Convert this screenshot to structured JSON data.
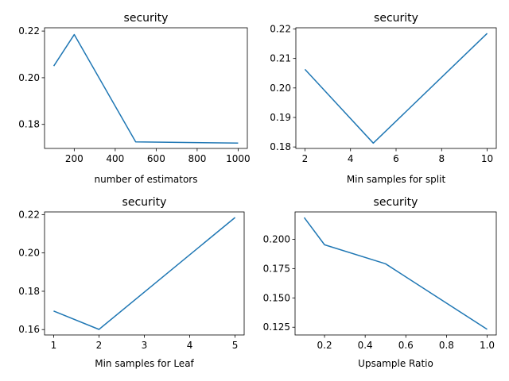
{
  "chart_data": [
    {
      "type": "line",
      "title": "security",
      "xlabel": "number of estimators",
      "ylabel": "",
      "grid": false,
      "x": [
        100,
        200,
        500,
        1000
      ],
      "series": [
        {
          "values": [
            0.205,
            0.2185,
            0.1725,
            0.172
          ]
        }
      ],
      "xlim": [
        55,
        1045
      ],
      "ylim": [
        0.1697,
        0.2214
      ],
      "xticks": [
        200,
        400,
        600,
        800,
        1000
      ],
      "xtick_labels": [
        "200",
        "400",
        "600",
        "800",
        "1000"
      ],
      "yticks": [
        0.18,
        0.2,
        0.22
      ],
      "ytick_labels": [
        "0.18",
        "0.20",
        "0.22"
      ],
      "line_color": "#1f77b4"
    },
    {
      "type": "line",
      "title": "security",
      "xlabel": "Min samples for split",
      "ylabel": "",
      "grid": false,
      "x": [
        2,
        5,
        10
      ],
      "series": [
        {
          "values": [
            0.2063,
            0.1813,
            0.2185
          ]
        }
      ],
      "xlim": [
        1.6,
        10.4
      ],
      "ylim": [
        0.1795,
        0.2204
      ],
      "xticks": [
        2,
        4,
        6,
        8,
        10
      ],
      "xtick_labels": [
        "2",
        "4",
        "6",
        "8",
        "10"
      ],
      "yticks": [
        0.18,
        0.19,
        0.2,
        0.21,
        0.22
      ],
      "ytick_labels": [
        "0.18",
        "0.19",
        "0.20",
        "0.21",
        "0.22"
      ],
      "line_color": "#1f77b4"
    },
    {
      "type": "line",
      "title": "security",
      "xlabel": "Min samples for Leaf",
      "ylabel": "",
      "grid": false,
      "x": [
        1,
        2,
        5
      ],
      "series": [
        {
          "values": [
            0.1697,
            0.1601,
            0.2185
          ]
        }
      ],
      "xlim": [
        0.8,
        5.2
      ],
      "ylim": [
        0.1572,
        0.2214
      ],
      "xticks": [
        1,
        2,
        3,
        4,
        5
      ],
      "xtick_labels": [
        "1",
        "2",
        "3",
        "4",
        "5"
      ],
      "yticks": [
        0.16,
        0.18,
        0.2,
        0.22
      ],
      "ytick_labels": [
        "0.16",
        "0.18",
        "0.20",
        "0.22"
      ],
      "line_color": "#1f77b4"
    },
    {
      "type": "line",
      "title": "security",
      "xlabel": "Upsample Ratio",
      "ylabel": "",
      "grid": false,
      "x": [
        0.1,
        0.2,
        0.5,
        1.0
      ],
      "series": [
        {
          "values": [
            0.2185,
            0.1953,
            0.1791,
            0.1232
          ]
        }
      ],
      "xlim": [
        0.055,
        1.045
      ],
      "ylim": [
        0.1184,
        0.2233
      ],
      "xticks": [
        0.2,
        0.4,
        0.6,
        0.8,
        1.0
      ],
      "xtick_labels": [
        "0.2",
        "0.4",
        "0.6",
        "0.8",
        "1.0"
      ],
      "yticks": [
        0.125,
        0.15,
        0.175,
        0.2
      ],
      "ytick_labels": [
        "0.125",
        "0.150",
        "0.175",
        "0.200"
      ],
      "line_color": "#1f77b4"
    }
  ]
}
